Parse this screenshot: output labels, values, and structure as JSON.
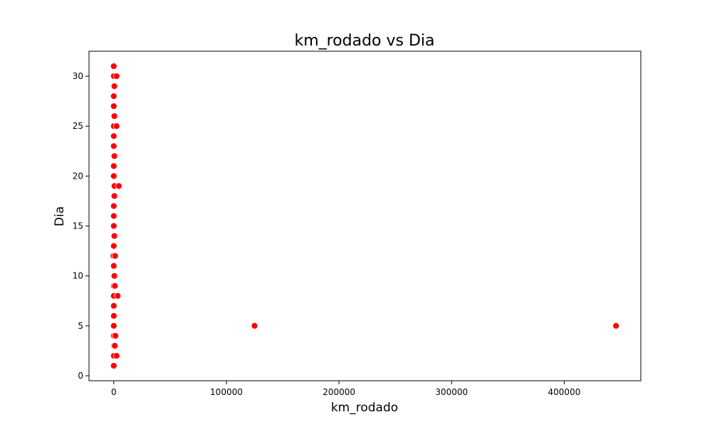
{
  "chart_data": {
    "type": "scatter",
    "title": "km_rodado vs Dia",
    "xlabel": "km_rodado",
    "ylabel": "Dia",
    "xlim": [
      -22000,
      468000
    ],
    "ylim": [
      -0.5,
      32.5
    ],
    "xticks": [
      0,
      100000,
      200000,
      300000,
      400000
    ],
    "yticks": [
      0,
      5,
      10,
      15,
      20,
      25,
      30
    ],
    "grid": false,
    "legend": "none",
    "marker_color": "#ff0000",
    "marker_edge": "#ffffff",
    "points": [
      {
        "x": 0,
        "y": 1
      },
      {
        "x": 50,
        "y": 2
      },
      {
        "x": 2500,
        "y": 2
      },
      {
        "x": 200,
        "y": 3
      },
      {
        "x": 900,
        "y": 3
      },
      {
        "x": 100,
        "y": 4
      },
      {
        "x": 1500,
        "y": 4
      },
      {
        "x": 0,
        "y": 5
      },
      {
        "x": 125000,
        "y": 5
      },
      {
        "x": 446000,
        "y": 5
      },
      {
        "x": 50,
        "y": 6
      },
      {
        "x": 0,
        "y": 7
      },
      {
        "x": 0,
        "y": 8
      },
      {
        "x": 3500,
        "y": 8
      },
      {
        "x": 0,
        "y": 9
      },
      {
        "x": 1000,
        "y": 9
      },
      {
        "x": 500,
        "y": 10
      },
      {
        "x": 0,
        "y": 11
      },
      {
        "x": -300,
        "y": 12
      },
      {
        "x": 1200,
        "y": 12
      },
      {
        "x": 0,
        "y": 13
      },
      {
        "x": 500,
        "y": 14
      },
      {
        "x": 0,
        "y": 15
      },
      {
        "x": 0,
        "y": 16
      },
      {
        "x": 0,
        "y": 17
      },
      {
        "x": 500,
        "y": 18
      },
      {
        "x": 600,
        "y": 19
      },
      {
        "x": 4500,
        "y": 19
      },
      {
        "x": 0,
        "y": 20
      },
      {
        "x": 0,
        "y": 21
      },
      {
        "x": 500,
        "y": 22
      },
      {
        "x": 0,
        "y": 23
      },
      {
        "x": 0,
        "y": 24
      },
      {
        "x": 0,
        "y": 25
      },
      {
        "x": 2500,
        "y": 25
      },
      {
        "x": 500,
        "y": 26
      },
      {
        "x": 0,
        "y": 27
      },
      {
        "x": 0,
        "y": 28
      },
      {
        "x": 500,
        "y": 29
      },
      {
        "x": 0,
        "y": 30
      },
      {
        "x": 2500,
        "y": 30
      },
      {
        "x": 0,
        "y": 31
      }
    ]
  }
}
